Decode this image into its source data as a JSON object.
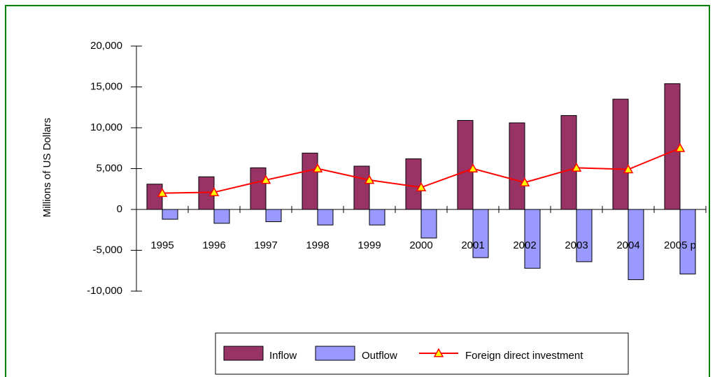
{
  "chart_data": {
    "type": "bar_line",
    "y_axis_label": "Millions of US Dollars",
    "categories": [
      "1995",
      "1996",
      "1997",
      "1998",
      "1999",
      "2000",
      "2001",
      "2002",
      "2003",
      "2004",
      "2005 p"
    ],
    "series": [
      {
        "name": "Inflow",
        "type": "bar",
        "color": "#993366",
        "values": [
          3100,
          4000,
          5100,
          6900,
          5300,
          6200,
          10900,
          10600,
          11500,
          13500,
          15400
        ]
      },
      {
        "name": "Outflow",
        "type": "bar",
        "color": "#9999ff",
        "values": [
          -1200,
          -1700,
          -1500,
          -1900,
          -1900,
          -3500,
          -5900,
          -7200,
          -6400,
          -8600,
          -7900
        ]
      },
      {
        "name": "Foreign direct investment",
        "type": "line",
        "color": "#ff0000",
        "marker_color": "#ffff00",
        "values": [
          2000,
          2100,
          3600,
          5000,
          3600,
          2700,
          5000,
          3300,
          5100,
          4900,
          7500
        ]
      }
    ],
    "ylim": [
      -10000,
      20000
    ],
    "yticks": [
      {
        "value": -10000,
        "label": "-10,000"
      },
      {
        "value": -5000,
        "label": "-5,000"
      },
      0,
      {
        "value": 5000,
        "label": "5,000"
      },
      {
        "value": 10000,
        "label": "10,000"
      },
      {
        "value": 15000,
        "label": "15,000"
      },
      {
        "value": 20000,
        "label": "20,000"
      }
    ],
    "legend": "bottom"
  }
}
